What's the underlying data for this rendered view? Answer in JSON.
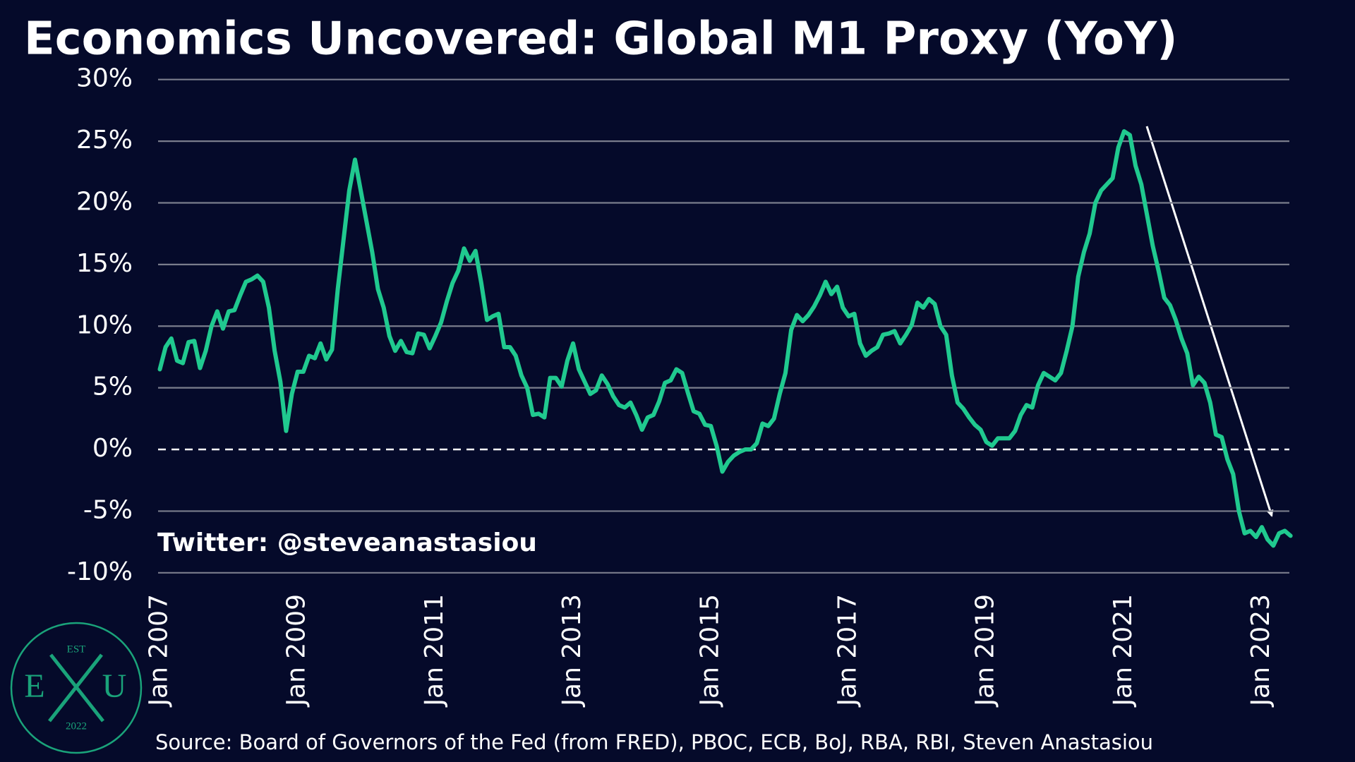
{
  "chart_data": {
    "type": "line",
    "title": "Economics Uncovered: Global M1 Proxy (YoY)",
    "annotations": {
      "twitter": "Twitter: @steveanastasiou",
      "source": "Source: Board of Governors of the Fed (from FRED), PBOC, ECB, BoJ, RBA, RBI, Steven Anastasiou"
    },
    "logo": {
      "top": "EST",
      "left": "E",
      "right": "U",
      "bottom": "2022"
    },
    "categories": [
      "Jan 2007",
      null,
      null,
      null,
      null,
      null,
      null,
      null,
      null,
      null,
      null,
      null,
      null,
      null,
      null,
      null,
      null,
      null,
      null,
      null,
      null,
      null,
      null,
      null,
      "Jan 2009",
      null,
      null,
      null,
      null,
      null,
      null,
      null,
      null,
      null,
      null,
      null,
      null,
      null,
      null,
      null,
      null,
      null,
      null,
      null,
      null,
      null,
      null,
      null,
      "Jan 2011",
      null,
      null,
      null,
      null,
      null,
      null,
      null,
      null,
      null,
      null,
      null,
      null,
      null,
      null,
      null,
      null,
      null,
      null,
      null,
      null,
      null,
      null,
      null,
      "Jan 2013",
      null,
      null,
      null,
      null,
      null,
      null,
      null,
      null,
      null,
      null,
      null,
      null,
      null,
      null,
      null,
      null,
      null,
      null,
      null,
      null,
      null,
      null,
      null,
      "Jan 2015",
      null,
      null,
      null,
      null,
      null,
      null,
      null,
      null,
      null,
      null,
      null,
      null,
      null,
      null,
      null,
      null,
      null,
      null,
      null,
      null,
      null,
      null,
      null,
      "Jan 2017",
      null,
      null,
      null,
      null,
      null,
      null,
      null,
      null,
      null,
      null,
      null,
      null,
      null,
      null,
      null,
      null,
      null,
      null,
      null,
      null,
      null,
      null,
      null,
      "Jan 2019",
      null,
      null,
      null,
      null,
      null,
      null,
      null,
      null,
      null,
      null,
      null,
      null,
      null,
      null,
      null,
      null,
      null,
      null,
      null,
      null,
      null,
      null,
      null,
      "Jan 2021",
      null,
      null,
      null,
      null,
      null,
      null,
      null,
      null,
      null,
      null,
      null,
      null,
      null,
      null,
      null,
      null,
      null,
      null,
      null,
      null,
      null,
      null,
      null,
      "Jan 2023",
      null,
      null,
      null,
      null,
      null
    ],
    "values": [
      6.5,
      8.3,
      9,
      7.2,
      7,
      8.7,
      8.8,
      6.6,
      8,
      10,
      11.2,
      9.8,
      11.2,
      11.3,
      12.5,
      13.6,
      13.8,
      14.1,
      13.6,
      11.5,
      8,
      5.5,
      1.5,
      4.5,
      6.3,
      6.3,
      7.6,
      7.4,
      8.6,
      7.3,
      8.1,
      13,
      17,
      21,
      23.5,
      21,
      18.5,
      16,
      13,
      11.5,
      9.2,
      8,
      8.8,
      7.9,
      7.8,
      9.4,
      9.3,
      8.2,
      9.2,
      10.3,
      12,
      13.5,
      14.5,
      16.3,
      15.3,
      16.1,
      13.5,
      10.5,
      10.8,
      11,
      8.3,
      8.3,
      7.6,
      6,
      5,
      2.8,
      2.9,
      2.6,
      5.8,
      5.8,
      5.1,
      7.2,
      8.6,
      6.5,
      5.5,
      4.5,
      4.8,
      6,
      5.3,
      4.3,
      3.6,
      3.4,
      3.8,
      2.8,
      1.6,
      2.6,
      2.8,
      3.9,
      5.4,
      5.6,
      6.5,
      6.2,
      4.6,
      3.1,
      2.9,
      2,
      1.9,
      0.3,
      -1.8,
      -1,
      -0.5,
      -0.2,
      0,
      0,
      0.5,
      2.1,
      1.9,
      2.5,
      4.5,
      6.2,
      9.7,
      10.9,
      10.4,
      10.9,
      11.6,
      12.5,
      13.6,
      12.6,
      13.2,
      11.5,
      10.8,
      11,
      8.6,
      7.6,
      8,
      8.3,
      9.3,
      9.4,
      9.6,
      8.6,
      9.3,
      10.1,
      11.9,
      11.5,
      12.2,
      11.8,
      10,
      9.3,
      6,
      3.8,
      3.3,
      2.6,
      2,
      1.6,
      0.6,
      0.3,
      0.9,
      0.9,
      0.9,
      1.5,
      2.8,
      3.6,
      3.4,
      5.2,
      6.2,
      5.9,
      5.6,
      6.2,
      8,
      10,
      14,
      16,
      17.5,
      20,
      21,
      21.5,
      22,
      24.5,
      25.8,
      25.5,
      23,
      21.5,
      19,
      16.5,
      14.5,
      12.3,
      11.7,
      10.5,
      9,
      7.8,
      5.2,
      5.9,
      5.4,
      3.8,
      1.2,
      1,
      -0.8,
      -2,
      -5,
      -6.8,
      -6.6,
      -7.1,
      -6.3,
      -7.3,
      -7.8,
      -6.8,
      -6.6,
      -7
    ],
    "color": "#20c98f",
    "ylim": [
      -10,
      30
    ],
    "yticks": [
      {
        "value": -10,
        "label": "-10%"
      },
      {
        "value": -5,
        "label": "-5%"
      },
      {
        "value": 0,
        "label": "0%"
      },
      {
        "value": 5,
        "label": "5%"
      },
      {
        "value": 10,
        "label": "10%"
      },
      {
        "value": 15,
        "label": "15%"
      },
      {
        "value": 20,
        "label": "20%"
      },
      {
        "value": 25,
        "label": "25%"
      },
      {
        "value": 30,
        "label": "30%"
      }
    ],
    "grid": true
  }
}
